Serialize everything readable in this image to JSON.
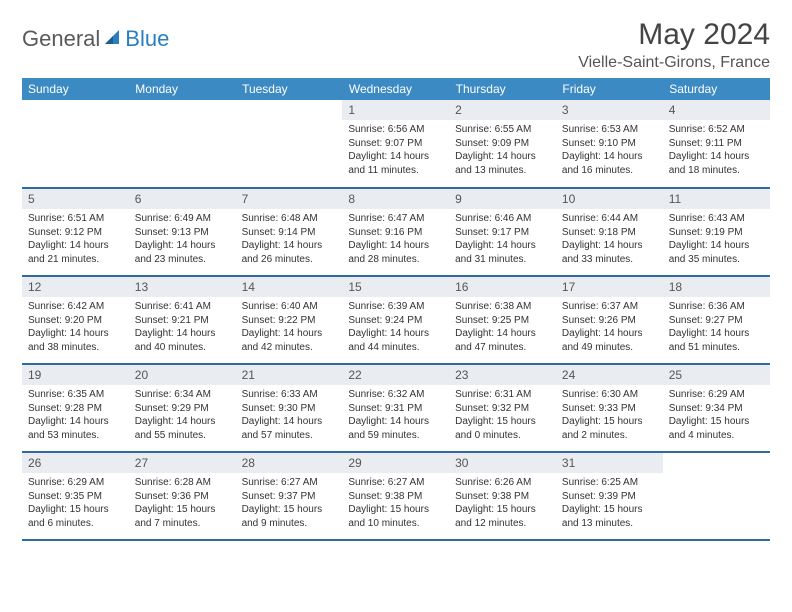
{
  "brand": {
    "part1": "General",
    "part2": "Blue"
  },
  "title": "May 2024",
  "location": "Vielle-Saint-Girons, France",
  "colors": {
    "header_bg": "#3b8ac4",
    "header_text": "#ffffff",
    "daynum_bg": "#e9edf1",
    "row_border": "#2d6a9e",
    "text": "#333333",
    "logo_gray": "#5a5a5a",
    "logo_blue": "#2b7fbf"
  },
  "weekdays": [
    "Sunday",
    "Monday",
    "Tuesday",
    "Wednesday",
    "Thursday",
    "Friday",
    "Saturday"
  ],
  "weeks": [
    [
      {
        "n": "",
        "sr": "",
        "ss": "",
        "dl": ""
      },
      {
        "n": "",
        "sr": "",
        "ss": "",
        "dl": ""
      },
      {
        "n": "",
        "sr": "",
        "ss": "",
        "dl": ""
      },
      {
        "n": "1",
        "sr": "Sunrise: 6:56 AM",
        "ss": "Sunset: 9:07 PM",
        "dl": "Daylight: 14 hours and 11 minutes."
      },
      {
        "n": "2",
        "sr": "Sunrise: 6:55 AM",
        "ss": "Sunset: 9:09 PM",
        "dl": "Daylight: 14 hours and 13 minutes."
      },
      {
        "n": "3",
        "sr": "Sunrise: 6:53 AM",
        "ss": "Sunset: 9:10 PM",
        "dl": "Daylight: 14 hours and 16 minutes."
      },
      {
        "n": "4",
        "sr": "Sunrise: 6:52 AM",
        "ss": "Sunset: 9:11 PM",
        "dl": "Daylight: 14 hours and 18 minutes."
      }
    ],
    [
      {
        "n": "5",
        "sr": "Sunrise: 6:51 AM",
        "ss": "Sunset: 9:12 PM",
        "dl": "Daylight: 14 hours and 21 minutes."
      },
      {
        "n": "6",
        "sr": "Sunrise: 6:49 AM",
        "ss": "Sunset: 9:13 PM",
        "dl": "Daylight: 14 hours and 23 minutes."
      },
      {
        "n": "7",
        "sr": "Sunrise: 6:48 AM",
        "ss": "Sunset: 9:14 PM",
        "dl": "Daylight: 14 hours and 26 minutes."
      },
      {
        "n": "8",
        "sr": "Sunrise: 6:47 AM",
        "ss": "Sunset: 9:16 PM",
        "dl": "Daylight: 14 hours and 28 minutes."
      },
      {
        "n": "9",
        "sr": "Sunrise: 6:46 AM",
        "ss": "Sunset: 9:17 PM",
        "dl": "Daylight: 14 hours and 31 minutes."
      },
      {
        "n": "10",
        "sr": "Sunrise: 6:44 AM",
        "ss": "Sunset: 9:18 PM",
        "dl": "Daylight: 14 hours and 33 minutes."
      },
      {
        "n": "11",
        "sr": "Sunrise: 6:43 AM",
        "ss": "Sunset: 9:19 PM",
        "dl": "Daylight: 14 hours and 35 minutes."
      }
    ],
    [
      {
        "n": "12",
        "sr": "Sunrise: 6:42 AM",
        "ss": "Sunset: 9:20 PM",
        "dl": "Daylight: 14 hours and 38 minutes."
      },
      {
        "n": "13",
        "sr": "Sunrise: 6:41 AM",
        "ss": "Sunset: 9:21 PM",
        "dl": "Daylight: 14 hours and 40 minutes."
      },
      {
        "n": "14",
        "sr": "Sunrise: 6:40 AM",
        "ss": "Sunset: 9:22 PM",
        "dl": "Daylight: 14 hours and 42 minutes."
      },
      {
        "n": "15",
        "sr": "Sunrise: 6:39 AM",
        "ss": "Sunset: 9:24 PM",
        "dl": "Daylight: 14 hours and 44 minutes."
      },
      {
        "n": "16",
        "sr": "Sunrise: 6:38 AM",
        "ss": "Sunset: 9:25 PM",
        "dl": "Daylight: 14 hours and 47 minutes."
      },
      {
        "n": "17",
        "sr": "Sunrise: 6:37 AM",
        "ss": "Sunset: 9:26 PM",
        "dl": "Daylight: 14 hours and 49 minutes."
      },
      {
        "n": "18",
        "sr": "Sunrise: 6:36 AM",
        "ss": "Sunset: 9:27 PM",
        "dl": "Daylight: 14 hours and 51 minutes."
      }
    ],
    [
      {
        "n": "19",
        "sr": "Sunrise: 6:35 AM",
        "ss": "Sunset: 9:28 PM",
        "dl": "Daylight: 14 hours and 53 minutes."
      },
      {
        "n": "20",
        "sr": "Sunrise: 6:34 AM",
        "ss": "Sunset: 9:29 PM",
        "dl": "Daylight: 14 hours and 55 minutes."
      },
      {
        "n": "21",
        "sr": "Sunrise: 6:33 AM",
        "ss": "Sunset: 9:30 PM",
        "dl": "Daylight: 14 hours and 57 minutes."
      },
      {
        "n": "22",
        "sr": "Sunrise: 6:32 AM",
        "ss": "Sunset: 9:31 PM",
        "dl": "Daylight: 14 hours and 59 minutes."
      },
      {
        "n": "23",
        "sr": "Sunrise: 6:31 AM",
        "ss": "Sunset: 9:32 PM",
        "dl": "Daylight: 15 hours and 0 minutes."
      },
      {
        "n": "24",
        "sr": "Sunrise: 6:30 AM",
        "ss": "Sunset: 9:33 PM",
        "dl": "Daylight: 15 hours and 2 minutes."
      },
      {
        "n": "25",
        "sr": "Sunrise: 6:29 AM",
        "ss": "Sunset: 9:34 PM",
        "dl": "Daylight: 15 hours and 4 minutes."
      }
    ],
    [
      {
        "n": "26",
        "sr": "Sunrise: 6:29 AM",
        "ss": "Sunset: 9:35 PM",
        "dl": "Daylight: 15 hours and 6 minutes."
      },
      {
        "n": "27",
        "sr": "Sunrise: 6:28 AM",
        "ss": "Sunset: 9:36 PM",
        "dl": "Daylight: 15 hours and 7 minutes."
      },
      {
        "n": "28",
        "sr": "Sunrise: 6:27 AM",
        "ss": "Sunset: 9:37 PM",
        "dl": "Daylight: 15 hours and 9 minutes."
      },
      {
        "n": "29",
        "sr": "Sunrise: 6:27 AM",
        "ss": "Sunset: 9:38 PM",
        "dl": "Daylight: 15 hours and 10 minutes."
      },
      {
        "n": "30",
        "sr": "Sunrise: 6:26 AM",
        "ss": "Sunset: 9:38 PM",
        "dl": "Daylight: 15 hours and 12 minutes."
      },
      {
        "n": "31",
        "sr": "Sunrise: 6:25 AM",
        "ss": "Sunset: 9:39 PM",
        "dl": "Daylight: 15 hours and 13 minutes."
      },
      {
        "n": "",
        "sr": "",
        "ss": "",
        "dl": ""
      }
    ]
  ]
}
